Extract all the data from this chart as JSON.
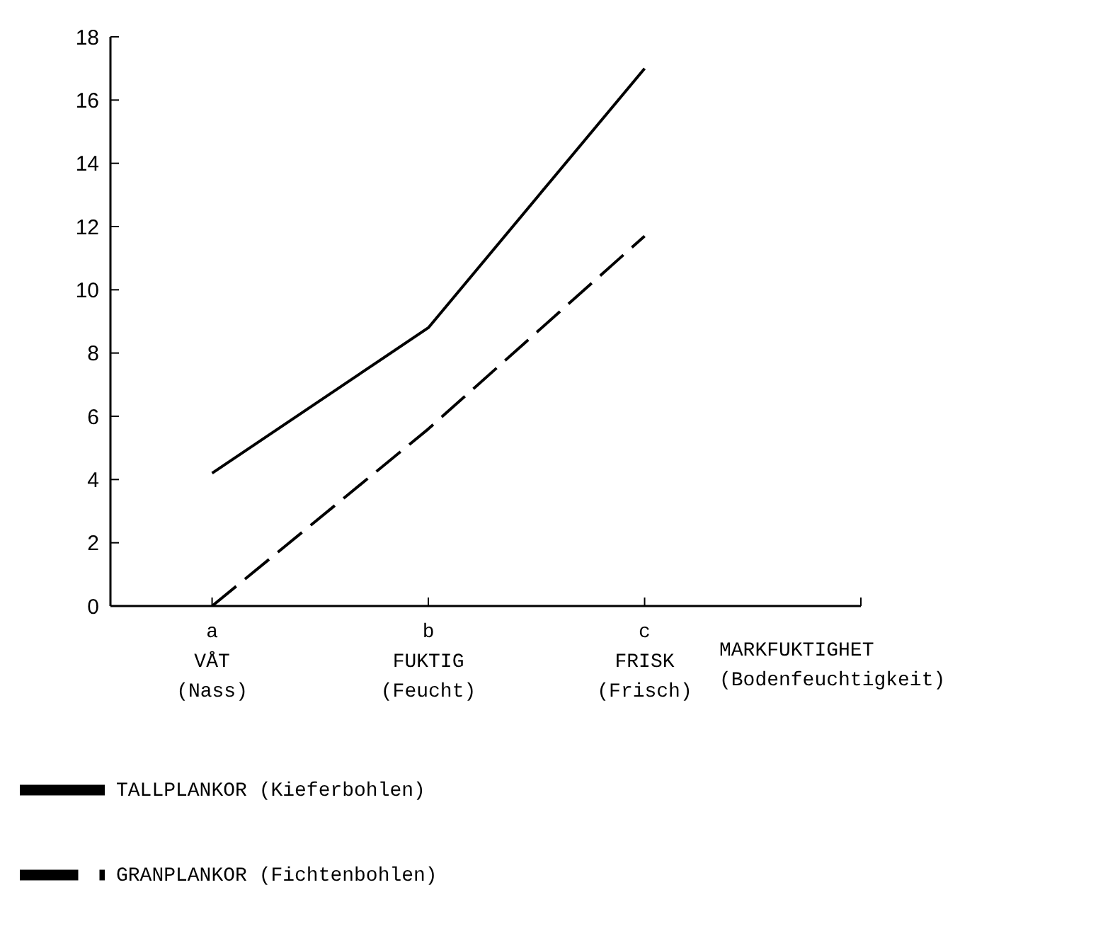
{
  "chart_data": {
    "type": "line",
    "xlabel": "MARKFUKTIGHET\n(Bodenfeuchtigkeit)",
    "categories": [
      "a\nVÅT\n(Nass)",
      "b\nFUKTIG\n(Feucht)",
      "c\nFRISK\n(Frisch)",
      null
    ],
    "series": [
      {
        "name": "TALLPLANKOR (Kieferbohlen)",
        "color": "#000000",
        "line_style": "solid",
        "values": [
          4.2,
          8.8,
          17.0,
          null
        ]
      },
      {
        "name": "GRANPLANKOR (Fichtenbohlen)",
        "color": "#000000",
        "line_style": "dashed",
        "values": [
          0,
          5.6,
          11.7,
          null
        ]
      }
    ],
    "ylim": [
      0,
      18
    ],
    "yticks": [
      0,
      2,
      4,
      6,
      8,
      10,
      12,
      14,
      16,
      18
    ],
    "grid": false,
    "legend": "bottom",
    "marker": "none"
  }
}
